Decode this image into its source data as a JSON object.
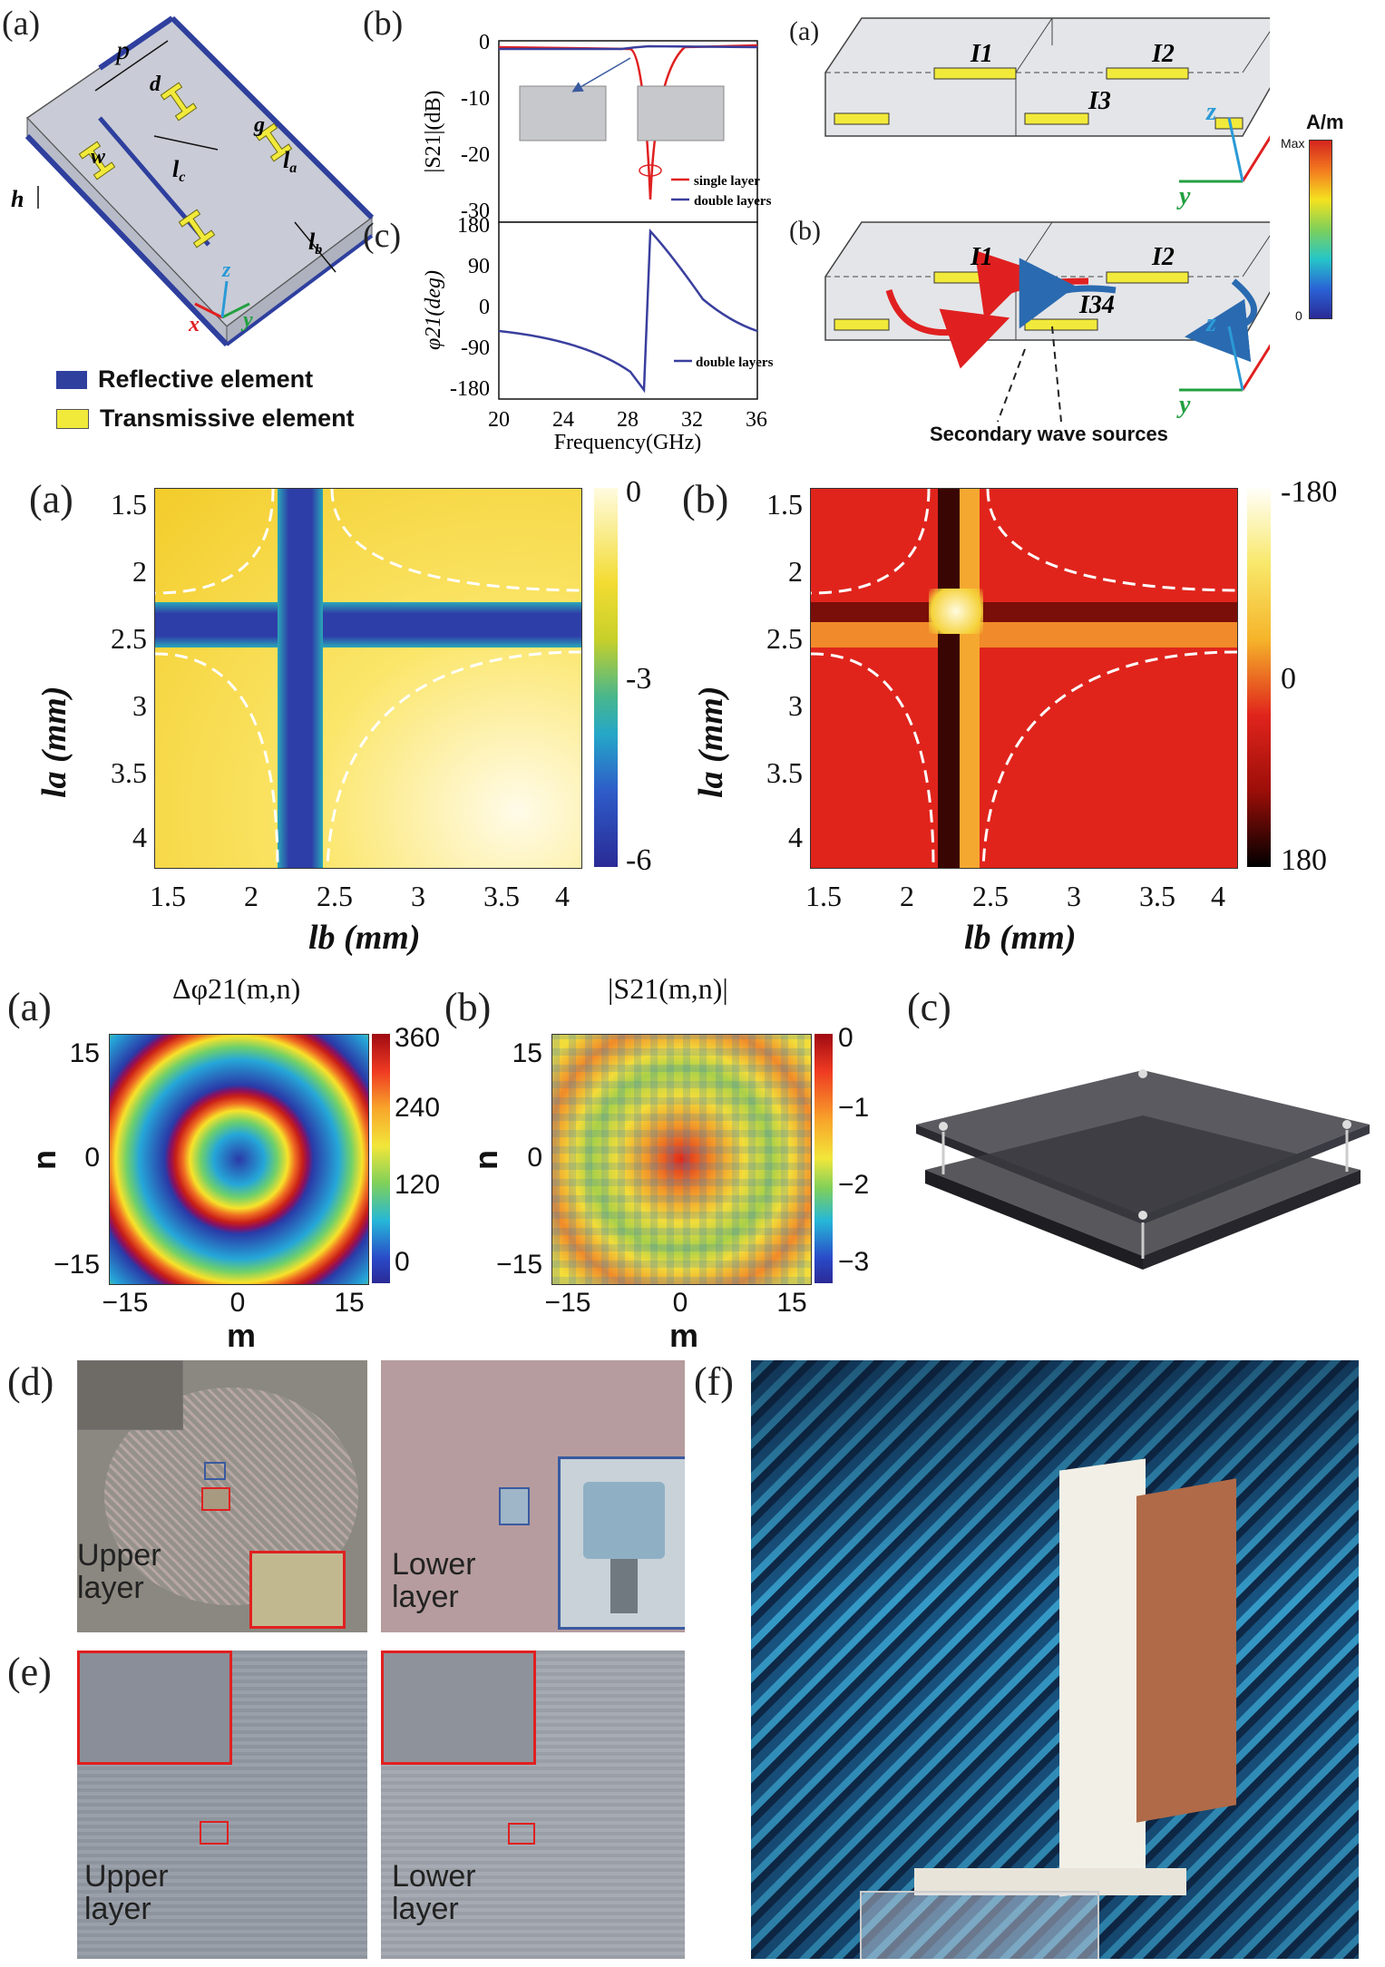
{
  "figure1": {
    "panel_a": {
      "label": "(a)",
      "dims": {
        "p": "p",
        "d": "d",
        "g": "g",
        "lc": "l",
        "lc_sub": "c",
        "la": "l",
        "la_sub": "a",
        "w": "w",
        "h": "h",
        "lb": "l",
        "lb_sub": "b"
      },
      "axes": {
        "x": "x",
        "y": "y",
        "z": "z"
      },
      "legend": [
        {
          "label": "Reflective element",
          "color": "#2e3f9e"
        },
        {
          "label": "Transmissive element",
          "color": "#f2ea3a"
        }
      ]
    },
    "panel_b": {
      "label": "(b)",
      "ylabel": "|S21|(dB)",
      "legend": [
        "single layer",
        "double layers"
      ],
      "yticks": [
        "0",
        "-10",
        "-20",
        "-30"
      ]
    },
    "panel_c": {
      "label": "(c)",
      "ylabel": "φ21(deg)",
      "legend": [
        "double layers"
      ],
      "yticks": [
        "180",
        "90",
        "0",
        "-90",
        "-180"
      ],
      "xticks": [
        "20",
        "24",
        "28",
        "32",
        "36"
      ],
      "xlabel": "Frequency(GHz)"
    },
    "panel_current": {
      "label_a": "(a)",
      "label_b": "(b)",
      "currents_a": [
        "I1",
        "I2",
        "I3"
      ],
      "currents_b": [
        "I1",
        "I2",
        "I34"
      ],
      "caption": "Secondary wave sources",
      "colorbar_unit": "A/m",
      "colorbar_max": "Max",
      "colorbar_min": "0"
    }
  },
  "figure2": {
    "panel_a": {
      "label": "(a)",
      "xlabel": "lb (mm)",
      "ylabel": "la (mm)",
      "xticks": [
        "1.5",
        "2",
        "2.5",
        "3",
        "3.5",
        "4"
      ],
      "yticks": [
        "1.5",
        "2",
        "2.5",
        "3",
        "3.5",
        "4"
      ],
      "colorbar": [
        "0",
        "-3",
        "-6"
      ]
    },
    "panel_b": {
      "label": "(b)",
      "xlabel": "lb (mm)",
      "ylabel": "la (mm)",
      "xticks": [
        "1.5",
        "2",
        "2.5",
        "3",
        "3.5",
        "4"
      ],
      "yticks": [
        "1.5",
        "2",
        "2.5",
        "3",
        "3.5",
        "4"
      ],
      "colorbar": [
        "-180",
        "0",
        "180"
      ]
    }
  },
  "figure3": {
    "panel_a": {
      "label": "(a)",
      "title": "Δφ21(m,n)",
      "xlabel": "m",
      "ylabel": "n",
      "xticks": [
        "−15",
        "0",
        "15"
      ],
      "yticks": [
        "15",
        "0",
        "−15"
      ],
      "colorbar": [
        "360",
        "240",
        "120",
        "0"
      ]
    },
    "panel_b": {
      "label": "(b)",
      "title": "|S21(m,n)|",
      "xlabel": "m",
      "ylabel": "n",
      "xticks": [
        "−15",
        "0",
        "15"
      ],
      "yticks": [
        "15",
        "0",
        "−15"
      ],
      "colorbar": [
        "0",
        "−1",
        "−2",
        "−3"
      ]
    },
    "panel_c": {
      "label": "(c)"
    },
    "panel_d": {
      "label": "(d)",
      "upper": "Upper\nlayer",
      "lower": "Lower\nlayer"
    },
    "panel_e": {
      "label": "(e)",
      "upper": "Upper\nlayer",
      "lower": "Lower\nlayer"
    },
    "panel_f": {
      "label": "(f)"
    }
  }
}
